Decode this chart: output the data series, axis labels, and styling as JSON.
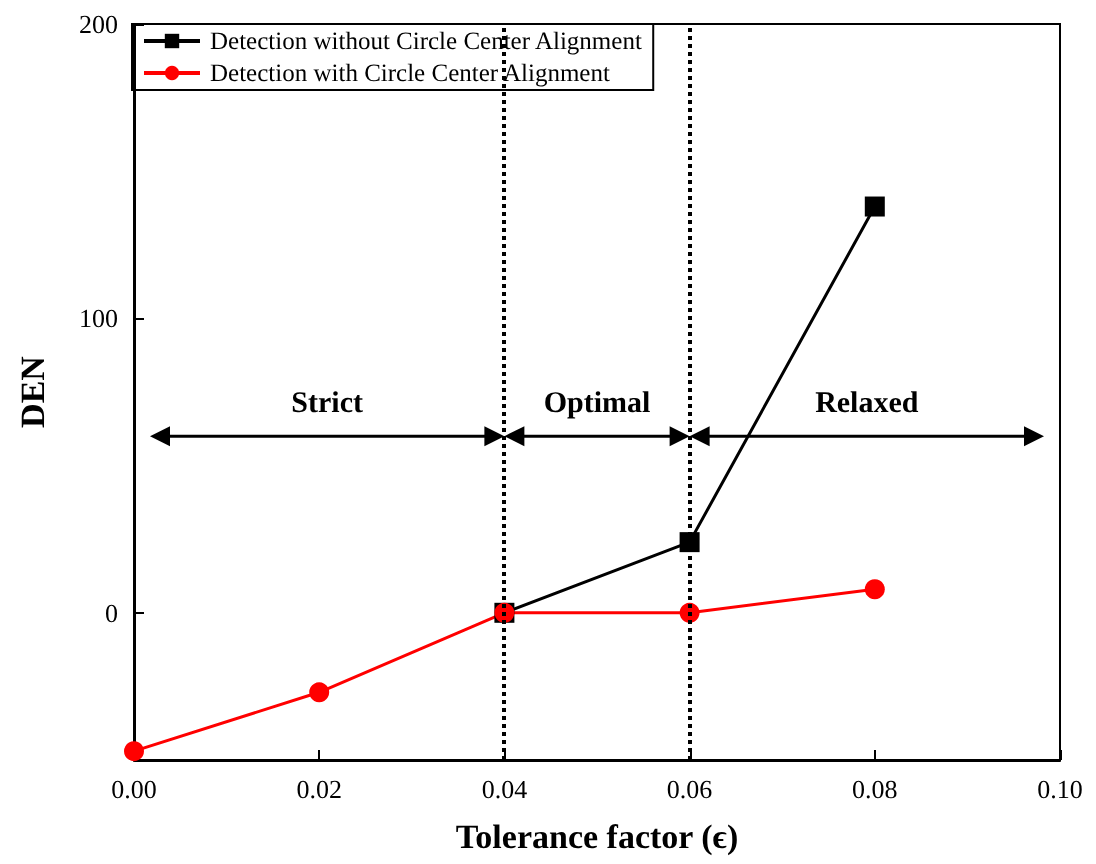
{
  "chart_data": {
    "type": "line",
    "xlabel": "Tolerance factor (ϵ)",
    "ylabel": "DEN",
    "xlim": [
      0,
      0.1
    ],
    "xticks": [
      {
        "value": 0,
        "label": "0.00"
      },
      {
        "value": 0.02,
        "label": "0.02"
      },
      {
        "value": 0.04,
        "label": "0.04"
      },
      {
        "value": 0.06,
        "label": "0.06"
      },
      {
        "value": 0.08,
        "label": "0.08"
      },
      {
        "value": 0.1,
        "label": "0.10"
      }
    ],
    "ylim": [
      -50,
      200
    ],
    "yticks": [
      0,
      100,
      200
    ],
    "series": [
      {
        "name": "Detection without Circle Center Alignment",
        "color": "#000000",
        "marker": "square",
        "x": [
          0.04,
          0.06,
          0.08
        ],
        "values": [
          0,
          24,
          138
        ]
      },
      {
        "name": "Detection with Circle Center Alignment",
        "color": "#ff0000",
        "marker": "circle",
        "x": [
          0,
          0.02,
          0.04,
          0.06,
          0.08
        ],
        "values": [
          -47,
          -27,
          0,
          0,
          8
        ]
      }
    ],
    "ref_lines": [
      {
        "axis": "x",
        "value": 0.04,
        "line_style": "dotted",
        "color": "#000000"
      },
      {
        "axis": "x",
        "value": 0.06,
        "line_style": "dotted",
        "color": "#000000"
      }
    ],
    "annotations": [
      "Strict",
      "Optimal",
      "Relaxed"
    ],
    "legend": "top left",
    "grid": false
  }
}
